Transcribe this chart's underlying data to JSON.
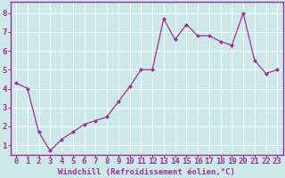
{
  "x": [
    0,
    1,
    2,
    3,
    4,
    5,
    6,
    7,
    8,
    9,
    10,
    11,
    12,
    13,
    14,
    15,
    16,
    17,
    18,
    19,
    20,
    21,
    22,
    23
  ],
  "y": [
    4.3,
    4.0,
    1.7,
    0.7,
    1.3,
    1.7,
    2.1,
    2.3,
    2.5,
    3.3,
    4.1,
    5.0,
    5.0,
    7.7,
    6.6,
    7.4,
    6.8,
    6.8,
    6.5,
    6.3,
    8.0,
    5.5,
    4.8,
    5.0
  ],
  "line_color": "#993399",
  "marker": "D",
  "marker_size": 2.0,
  "bg_color": "#cce8e8",
  "grid_color": "#ffffff",
  "xlabel": "Windchill (Refroidissement éolien,°C)",
  "ylabel_ticks": [
    1,
    2,
    3,
    4,
    5,
    6,
    7,
    8
  ],
  "xlim": [
    -0.5,
    23.5
  ],
  "ylim": [
    0.5,
    8.6
  ],
  "xlabel_color": "#993399",
  "tick_color": "#993399",
  "spine_color": "#993399",
  "xlabel_fontsize": 6.5,
  "tick_fontsize": 6.5
}
